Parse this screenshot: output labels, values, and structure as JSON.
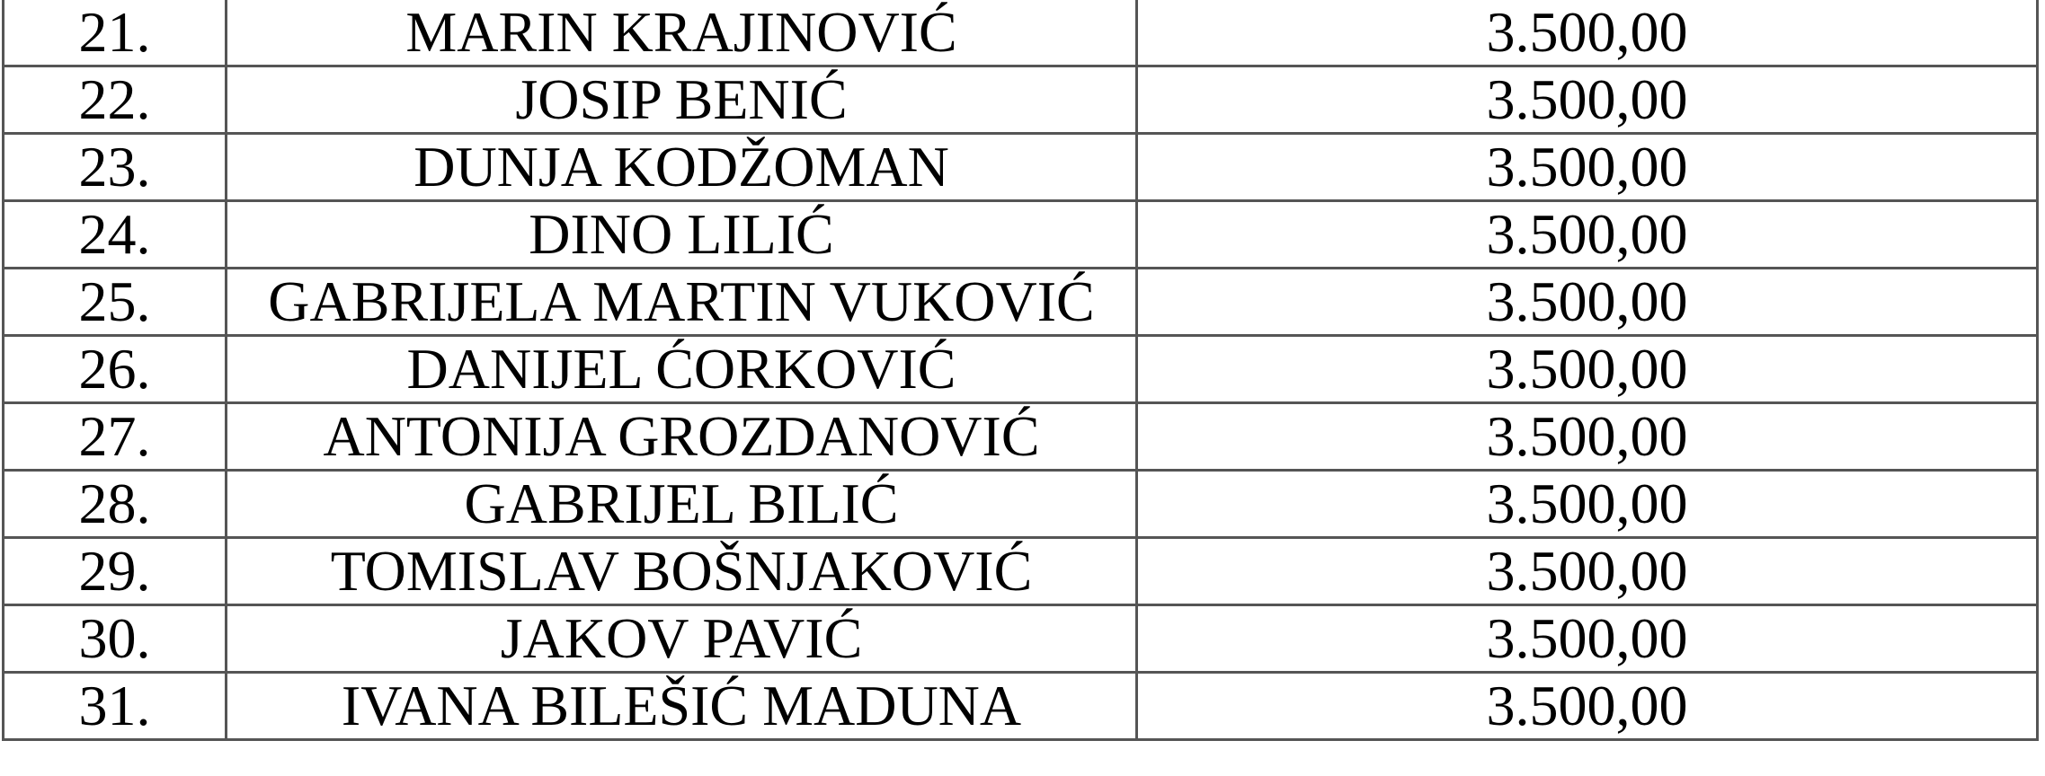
{
  "rows": [
    {
      "no": "21.",
      "name": "MARIN KRAJINOVIĆ",
      "amount": "3.500,00"
    },
    {
      "no": "22.",
      "name": "JOSIP BENIĆ",
      "amount": "3.500,00"
    },
    {
      "no": "23.",
      "name": "DUNJA KODŽOMAN",
      "amount": "3.500,00"
    },
    {
      "no": "24.",
      "name": "DINO LILIĆ",
      "amount": "3.500,00"
    },
    {
      "no": "25.",
      "name": "GABRIJELA MARTIN VUKOVIĆ",
      "amount": "3.500,00"
    },
    {
      "no": "26.",
      "name": "DANIJEL ĆORKOVIĆ",
      "amount": "3.500,00"
    },
    {
      "no": "27.",
      "name": "ANTONIJA GROZDANOVIĆ",
      "amount": "3.500,00"
    },
    {
      "no": "28.",
      "name": "GABRIJEL BILIĆ",
      "amount": "3.500,00"
    },
    {
      "no": "29.",
      "name": "TOMISLAV BOŠNJAKOVIĆ",
      "amount": "3.500,00"
    },
    {
      "no": "30.",
      "name": "JAKOV PAVIĆ",
      "amount": "3.500,00"
    },
    {
      "no": "31.",
      "name": "IVANA BILEŠIĆ MADUNA",
      "amount": "3.500,00"
    }
  ]
}
